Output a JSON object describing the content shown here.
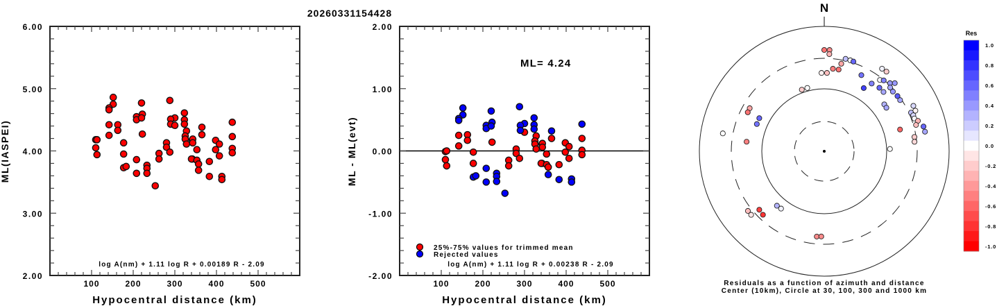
{
  "title": "20260331154428",
  "chart_data": [
    {
      "type": "scatter",
      "name": "ml-vs-distance",
      "xlabel": "Hypocentral distance (km)",
      "ylabel": "ML(IASPEI)",
      "xlim": [
        0,
        600
      ],
      "ylim": [
        2.0,
        6.0
      ],
      "x_ticks": [
        "100",
        "200",
        "300",
        "400",
        "500"
      ],
      "x_tick_values": [
        100,
        200,
        300,
        400,
        500
      ],
      "y_ticks": [
        "2.00",
        "3.00",
        "4.00",
        "5.00",
        "6.00"
      ],
      "y_tick_values": [
        2,
        3,
        4,
        5,
        6
      ],
      "formula": "log A(nm) + 1.11 log R + 0.00189 R - 2.09",
      "marker_color": "#ff0000",
      "points": [
        [
          152,
          4.86
        ],
        [
          152,
          4.75
        ],
        [
          142,
          4.69
        ],
        [
          142,
          4.66
        ],
        [
          220,
          4.77
        ],
        [
          288,
          4.81
        ],
        [
          208,
          4.55
        ],
        [
          208,
          4.5
        ],
        [
          222,
          4.59
        ],
        [
          220,
          4.53
        ],
        [
          142,
          4.42
        ],
        [
          163,
          4.42
        ],
        [
          163,
          4.33
        ],
        [
          142,
          4.25
        ],
        [
          222,
          4.27
        ],
        [
          323,
          4.61
        ],
        [
          323,
          4.5
        ],
        [
          300,
          4.53
        ],
        [
          290,
          4.51
        ],
        [
          290,
          4.43
        ],
        [
          300,
          4.41
        ],
        [
          323,
          4.43
        ],
        [
          110,
          4.18
        ],
        [
          113,
          4.18
        ],
        [
          110,
          4.05
        ],
        [
          113,
          3.94
        ],
        [
          177,
          4.13
        ],
        [
          177,
          3.95
        ],
        [
          177,
          3.73
        ],
        [
          183,
          3.75
        ],
        [
          208,
          3.86
        ],
        [
          208,
          3.64
        ],
        [
          233,
          3.77
        ],
        [
          233,
          3.72
        ],
        [
          233,
          3.64
        ],
        [
          253,
          3.44
        ],
        [
          280,
          4.13
        ],
        [
          280,
          4.06
        ],
        [
          288,
          3.98
        ],
        [
          262,
          3.96
        ],
        [
          262,
          3.87
        ],
        [
          328,
          4.32
        ],
        [
          325,
          4.24
        ],
        [
          325,
          4.19
        ],
        [
          328,
          4.11
        ],
        [
          342,
          4.18
        ],
        [
          342,
          3.87
        ],
        [
          438,
          4.46
        ],
        [
          438,
          4.23
        ],
        [
          438,
          4.04
        ],
        [
          438,
          3.97
        ],
        [
          365,
          4.38
        ],
        [
          365,
          4.26
        ],
        [
          343,
          4.19
        ],
        [
          343,
          4.13
        ],
        [
          353,
          4.02
        ],
        [
          398,
          4.17
        ],
        [
          407,
          4.11
        ],
        [
          398,
          4.02
        ],
        [
          407,
          3.92
        ],
        [
          340,
          3.87
        ],
        [
          353,
          3.85
        ],
        [
          357,
          3.79
        ],
        [
          357,
          3.69
        ],
        [
          383,
          3.83
        ],
        [
          383,
          3.59
        ],
        [
          413,
          3.59
        ],
        [
          413,
          3.54
        ]
      ]
    },
    {
      "type": "scatter",
      "name": "residual-vs-distance",
      "xlabel": "Hypocentral distance (km)",
      "ylabel": "ML - ML(evt)",
      "xlim": [
        0,
        600
      ],
      "ylim": [
        -2.0,
        2.0
      ],
      "x_ticks": [
        "100",
        "200",
        "300",
        "400",
        "500"
      ],
      "x_tick_values": [
        100,
        200,
        300,
        400,
        500
      ],
      "y_ticks": [
        "-2.00",
        "-1.00",
        "0.00",
        "1.00",
        "2.00"
      ],
      "y_tick_values": [
        -2,
        -1,
        0,
        1,
        2
      ],
      "annotation": "ML= 4.24",
      "formula": "log A(nm) + 1.11 log R + 0.00238 R - 2.09",
      "zero_line": true,
      "legend": [
        {
          "label": "25%-75% values for trimmed mean",
          "color": "#ff0000"
        },
        {
          "label": "Rejected values",
          "color": "#0000ff"
        }
      ],
      "legend_position": "bottom-left",
      "series": [
        {
          "name": "25%-75% values for trimmed mean",
          "color": "#ff0000",
          "points": [
            [
              142,
              0.25
            ],
            [
              163,
              0.26
            ],
            [
              163,
              0.17
            ],
            [
              142,
              0.08
            ],
            [
              222,
              0.14
            ],
            [
              300,
              0.3
            ],
            [
              110,
              -0.01
            ],
            [
              113,
              0.0
            ],
            [
              110,
              -0.14
            ],
            [
              113,
              -0.24
            ],
            [
              177,
              -0.02
            ],
            [
              177,
              -0.2
            ],
            [
              280,
              0.03
            ],
            [
              280,
              -0.04
            ],
            [
              288,
              -0.12
            ],
            [
              262,
              -0.15
            ],
            [
              262,
              -0.24
            ],
            [
              328,
              0.24
            ],
            [
              325,
              0.16
            ],
            [
              325,
              0.11
            ],
            [
              328,
              0.03
            ],
            [
              342,
              0.11
            ],
            [
              342,
              -0.2
            ],
            [
              438,
              0.2
            ],
            [
              438,
              0.01
            ],
            [
              438,
              -0.06
            ],
            [
              365,
              0.2
            ],
            [
              343,
              0.12
            ],
            [
              343,
              0.06
            ],
            [
              353,
              -0.05
            ],
            [
              398,
              0.13
            ],
            [
              407,
              0.07
            ],
            [
              398,
              -0.02
            ],
            [
              407,
              -0.12
            ],
            [
              340,
              -0.2
            ],
            [
              353,
              -0.22
            ],
            [
              357,
              -0.26
            ],
            [
              383,
              -0.22
            ]
          ]
        },
        {
          "name": "Rejected values",
          "color": "#0000ff",
          "points": [
            [
              152,
              0.69
            ],
            [
              152,
              0.58
            ],
            [
              142,
              0.52
            ],
            [
              142,
              0.49
            ],
            [
              220,
              0.64
            ],
            [
              288,
              0.71
            ],
            [
              208,
              0.41
            ],
            [
              208,
              0.36
            ],
            [
              222,
              0.46
            ],
            [
              220,
              0.4
            ],
            [
              323,
              0.53
            ],
            [
              323,
              0.42
            ],
            [
              300,
              0.44
            ],
            [
              290,
              0.41
            ],
            [
              290,
              0.33
            ],
            [
              323,
              0.35
            ],
            [
              177,
              -0.42
            ],
            [
              183,
              -0.4
            ],
            [
              208,
              -0.28
            ],
            [
              208,
              -0.5
            ],
            [
              233,
              -0.36
            ],
            [
              233,
              -0.41
            ],
            [
              233,
              -0.49
            ],
            [
              253,
              -0.68
            ],
            [
              438,
              0.43
            ],
            [
              365,
              0.32
            ],
            [
              357,
              -0.38
            ],
            [
              383,
              -0.46
            ],
            [
              413,
              -0.45
            ],
            [
              413,
              -0.5
            ]
          ]
        }
      ]
    },
    {
      "type": "scatter",
      "name": "residual-polar-map",
      "north_label": "N",
      "caption_line1": "Residuals as a function of azimuth and distance",
      "caption_line2": "Center (10km), Circle at 30, 100, 300 and 1000 km",
      "center_km": 10,
      "circles_km": [
        30,
        100,
        300,
        1000
      ],
      "colorbar": {
        "title": "Res",
        "range": [
          -1.0,
          1.0
        ],
        "tick_labels": [
          "1.0",
          "0.8",
          "0.6",
          "0.4",
          "0.2",
          "0.0",
          "-0.2",
          "-0.4",
          "-0.6",
          "-0.8",
          "-1.0"
        ],
        "tick_values": [
          1.0,
          0.8,
          0.6,
          0.4,
          0.2,
          0.0,
          -0.2,
          -0.4,
          -0.6,
          -0.8,
          -1.0
        ],
        "positive_color": "#0000ff",
        "negative_color": "#ff0000",
        "zero_color": "#ffffff"
      },
      "points_az_dist_res": [
        [
          0,
          419,
          -0.55
        ],
        [
          3,
          420,
          -0.45
        ],
        [
          3,
          361,
          -0.3
        ],
        [
          13,
          330,
          0.25
        ],
        [
          16,
          327,
          0.02
        ],
        [
          18,
          324,
          0.6
        ],
        [
          11,
          268,
          -0.35
        ],
        [
          6,
          213,
          -0.5
        ],
        [
          10,
          213,
          -0.55
        ],
        [
          358,
          180,
          -0.05
        ],
        [
          2,
          180,
          -0.25
        ],
        [
          26,
          227,
          0.55
        ],
        [
          35,
          211,
          0.5
        ],
        [
          32,
          156,
          0.75
        ],
        [
          35,
          411,
          0.05
        ],
        [
          38,
          415,
          -0.2
        ],
        [
          38,
          281,
          0.02
        ],
        [
          40,
          303,
          0.5
        ],
        [
          44,
          328,
          0.4
        ],
        [
          46,
          372,
          0.4
        ],
        [
          41,
          222,
          0.6
        ],
        [
          46,
          294,
          0.35
        ],
        [
          45,
          220,
          0.35
        ],
        [
          49,
          286,
          0.4
        ],
        [
          53,
          294,
          0.65
        ],
        [
          56,
          292,
          0.35
        ],
        [
          52,
          166,
          0.3
        ],
        [
          55,
          164,
          0.35
        ],
        [
          63,
          400,
          0.15
        ],
        [
          66,
          396,
          -0.05
        ],
        [
          66,
          332,
          0.25
        ],
        [
          68,
          345,
          0.15
        ],
        [
          70,
          343,
          0.03
        ],
        [
          72,
          378,
          -0.3
        ],
        [
          74,
          338,
          -0.25
        ],
        [
          76,
          435,
          0.6
        ],
        [
          79,
          440,
          0.35
        ],
        [
          74,
          183,
          -0.6
        ],
        [
          81,
          290,
          -0.2
        ],
        [
          84,
          284,
          -0.15
        ],
        [
          88,
          113,
          0.0
        ],
        [
          340,
          112,
          -0.2
        ],
        [
          345,
          112,
          0.0
        ],
        [
          300,
          239,
          -0.35
        ],
        [
          297,
          237,
          -0.55
        ],
        [
          297,
          147,
          0.6
        ],
        [
          292,
          146,
          0.55
        ],
        [
          280,
          446,
          0.0
        ],
        [
          277,
          179,
          -0.5
        ],
        [
          232,
          356,
          -0.25
        ],
        [
          229,
          356,
          -0.1
        ],
        [
          228,
          251,
          -0.75
        ],
        [
          224,
          259,
          -0.8
        ],
        [
          221,
          143,
          0.3
        ],
        [
          217,
          141,
          0.05
        ],
        [
          185,
          235,
          -0.45
        ],
        [
          182,
          232,
          -0.45
        ]
      ]
    }
  ]
}
